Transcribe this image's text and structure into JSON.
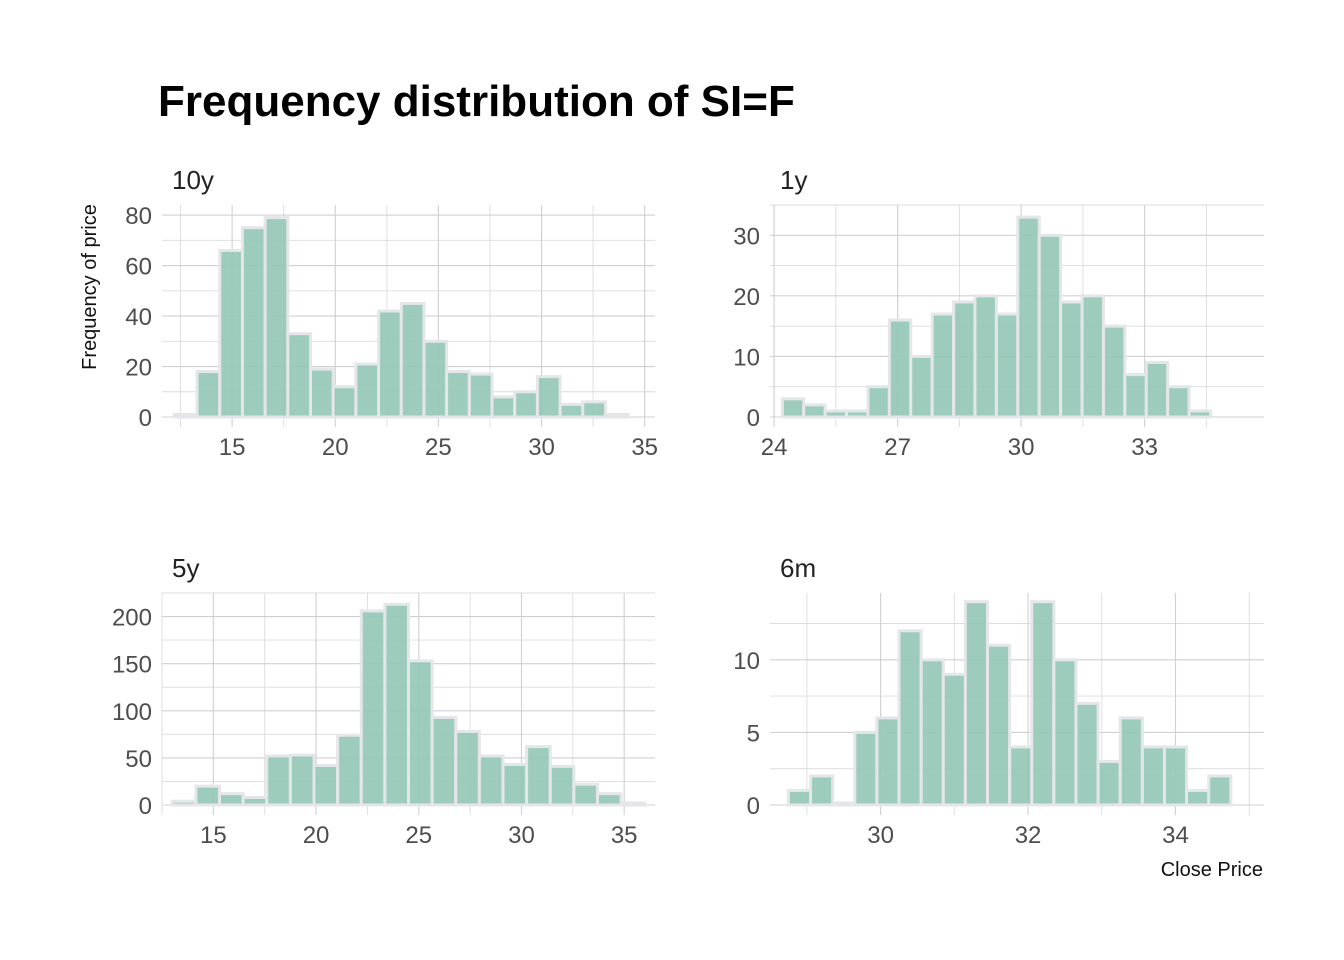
{
  "title": "Frequency distribution of SI=F",
  "ylabel": "Frequency of price",
  "xlabel": "Close Price",
  "colors": {
    "bar_fill": "#93c6b5",
    "bar_edge": "#e4e6ea",
    "grid": "#d0d0d0"
  },
  "chart_data": [
    {
      "type": "bar",
      "title": "10y",
      "xlim": [
        11.6,
        35.5
      ],
      "ylim": [
        0,
        84
      ],
      "xticks": [
        15,
        20,
        25,
        30,
        35
      ],
      "yticks": [
        0,
        20,
        40,
        60,
        80
      ],
      "bin_start": 12.2,
      "bin_width": 1.1,
      "values": [
        1,
        18,
        66,
        75,
        79,
        33,
        19,
        12,
        21,
        42,
        45,
        30,
        18,
        17,
        8,
        10,
        16,
        5,
        6,
        1
      ]
    },
    {
      "type": "bar",
      "title": "1y",
      "xlim": [
        23.9,
        35.9
      ],
      "ylim": [
        0,
        35
      ],
      "xticks": [
        24,
        27,
        30,
        33
      ],
      "yticks": [
        0,
        10,
        20,
        30
      ],
      "bin_start": 24.2,
      "bin_width": 0.52,
      "values": [
        3,
        2,
        1,
        1,
        5,
        16,
        10,
        17,
        19,
        20,
        17,
        33,
        30,
        19,
        20,
        15,
        7,
        9,
        5,
        1
      ]
    },
    {
      "type": "bar",
      "title": "5y",
      "xlim": [
        12.5,
        36.5
      ],
      "ylim": [
        0,
        225
      ],
      "xticks": [
        15,
        20,
        25,
        30,
        35
      ],
      "yticks": [
        0,
        50,
        100,
        150,
        200
      ],
      "bin_start": 13.0,
      "bin_width": 1.15,
      "values": [
        4,
        20,
        12,
        8,
        52,
        53,
        42,
        74,
        206,
        213,
        153,
        93,
        78,
        52,
        43,
        62,
        41,
        22,
        12,
        1
      ]
    },
    {
      "type": "bar",
      "title": "6m",
      "xlim": [
        28.5,
        35.2
      ],
      "ylim": [
        0,
        14.6
      ],
      "xticks": [
        30,
        32,
        34
      ],
      "yticks": [
        0,
        5,
        10
      ],
      "bin_start": 28.75,
      "bin_width": 0.3,
      "values": [
        1,
        2,
        0,
        5,
        6,
        12,
        10,
        9,
        14,
        11,
        4,
        14,
        10,
        7,
        3,
        6,
        4,
        4,
        1,
        2
      ]
    }
  ]
}
